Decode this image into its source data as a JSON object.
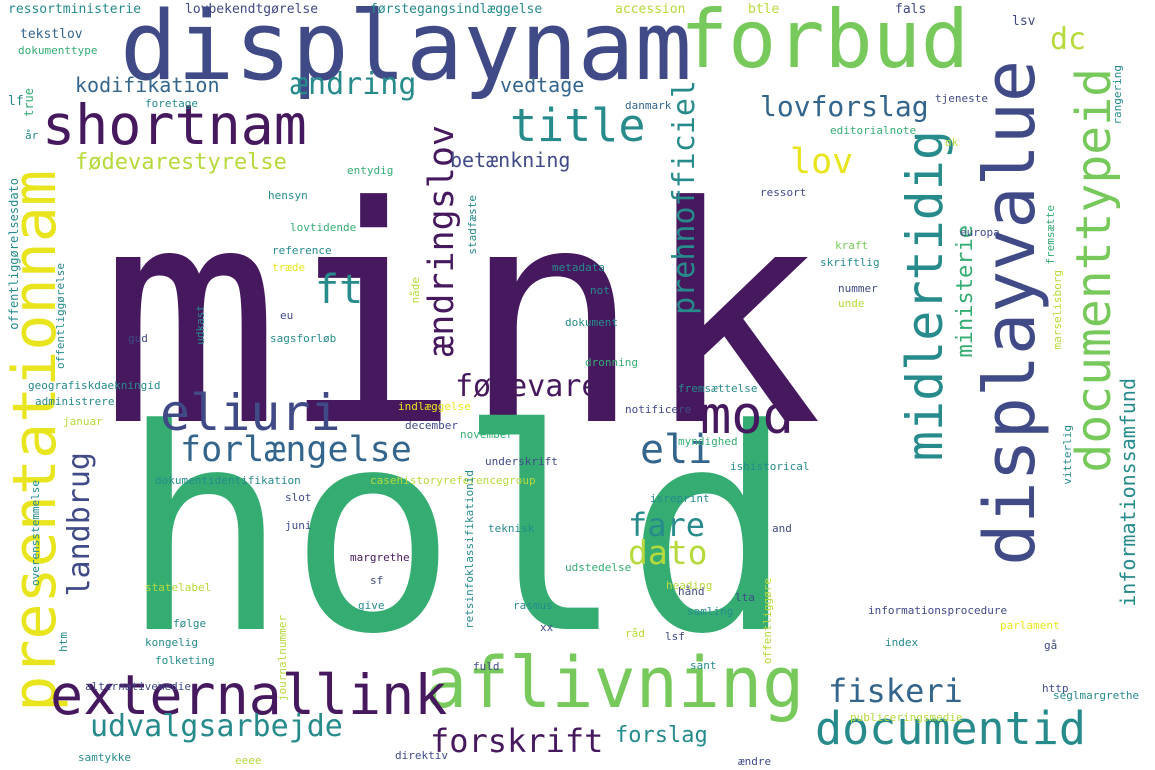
{
  "palette": {
    "dark_purple": "#46195f",
    "indigo": "#404a87",
    "blue": "#33658d",
    "teal": "#278b8c",
    "green": "#35ad72",
    "light_green": "#78c95b",
    "lime": "#b6d93c",
    "yellow": "#e8e51e"
  },
  "words": [
    {
      "text": "mink",
      "color": "dark_purple",
      "rotated": false
    },
    {
      "text": "hold",
      "color": "green",
      "rotated": false
    },
    {
      "text": "displaynam",
      "color": "indigo",
      "rotated": false
    },
    {
      "text": "forbud",
      "color": "light_green",
      "rotated": false
    },
    {
      "text": "shortnam",
      "color": "dark_purple",
      "rotated": false
    },
    {
      "text": "displayvalue",
      "color": "indigo",
      "rotated": true
    },
    {
      "text": "presentationnam",
      "color": "yellow",
      "rotated": true
    },
    {
      "text": "documenttypeid",
      "color": "light_green",
      "rotated": true
    },
    {
      "text": "midlertidig",
      "color": "teal",
      "rotated": true
    },
    {
      "text": "aflivning",
      "color": "light_green",
      "rotated": false
    },
    {
      "text": "externallink",
      "color": "dark_purple",
      "rotated": false
    },
    {
      "text": "eliuri",
      "color": "indigo",
      "rotated": false
    },
    {
      "text": "mod",
      "color": "dark_purple",
      "rotated": false
    },
    {
      "text": "title",
      "color": "teal",
      "rotated": false
    },
    {
      "text": "documentid",
      "color": "teal",
      "rotated": false
    },
    {
      "text": "eli",
      "color": "blue",
      "rotated": false
    },
    {
      "text": "forlængelse",
      "color": "blue",
      "rotated": false
    },
    {
      "text": "lovforslag",
      "color": "blue",
      "rotated": false
    },
    {
      "text": "lov",
      "color": "yellow",
      "rotated": false
    },
    {
      "text": "ændring",
      "color": "teal",
      "rotated": false
    },
    {
      "text": "ændringslov",
      "color": "dark_purple",
      "rotated": true
    },
    {
      "text": "prehnofficiel",
      "color": "teal",
      "rotated": true
    },
    {
      "text": "ft",
      "color": "teal",
      "rotated": false
    },
    {
      "text": "dato",
      "color": "lime",
      "rotated": false
    },
    {
      "text": "fare",
      "color": "teal",
      "rotated": false
    },
    {
      "text": "fiskeri",
      "color": "blue",
      "rotated": false
    },
    {
      "text": "forskrift",
      "color": "dark_purple",
      "rotated": false
    },
    {
      "text": "udvalgsarbejde",
      "color": "teal",
      "rotated": false
    },
    {
      "text": "fødevare",
      "color": "dark_purple",
      "rotated": false
    },
    {
      "text": "landbrug",
      "color": "indigo",
      "rotated": true
    },
    {
      "text": "informationssamfund",
      "color": "teal",
      "rotated": true
    },
    {
      "text": "ministerie",
      "color": "green",
      "rotated": true
    },
    {
      "text": "kodifikation",
      "color": "blue",
      "rotated": false
    },
    {
      "text": "vedtage",
      "color": "blue",
      "rotated": false
    },
    {
      "text": "betænkning",
      "color": "indigo",
      "rotated": false
    },
    {
      "text": "fødevarestyrelse",
      "color": "lime",
      "rotated": false
    },
    {
      "text": "forslag",
      "color": "teal",
      "rotated": false
    },
    {
      "text": "dc",
      "color": "lime",
      "rotated": false
    },
    {
      "text": "ressortministerie",
      "color": "teal",
      "rotated": false
    },
    {
      "text": "lovbekendtgørelse",
      "color": "indigo",
      "rotated": false
    },
    {
      "text": "førstegangsindlæggelse",
      "color": "teal",
      "rotated": false
    },
    {
      "text": "accession",
      "color": "lime",
      "rotated": false
    },
    {
      "text": "btle",
      "color": "lime",
      "rotated": false
    },
    {
      "text": "fals",
      "color": "indigo",
      "rotated": false
    },
    {
      "text": "lsv",
      "color": "indigo",
      "rotated": false
    },
    {
      "text": "tekstlov",
      "color": "blue",
      "rotated": false
    },
    {
      "text": "dokumenttype",
      "color": "green",
      "rotated": false
    },
    {
      "text": "lf",
      "color": "teal",
      "rotated": false
    },
    {
      "text": "true",
      "color": "green",
      "rotated": true
    },
    {
      "text": "foretage",
      "color": "teal",
      "rotated": false
    },
    {
      "text": "år",
      "color": "teal",
      "rotated": false
    },
    {
      "text": "tjeneste",
      "color": "indigo",
      "rotated": false
    },
    {
      "text": "danmark",
      "color": "blue",
      "rotated": false
    },
    {
      "text": "rangering",
      "color": "teal",
      "rotated": true
    },
    {
      "text": "editorialnote",
      "color": "green",
      "rotated": false
    },
    {
      "text": "dk",
      "color": "lime",
      "rotated": false
    },
    {
      "text": "entydig",
      "color": "green",
      "rotated": false
    },
    {
      "text": "offentliggørelsesdato",
      "color": "teal",
      "rotated": true
    },
    {
      "text": "ressort",
      "color": "indigo",
      "rotated": false
    },
    {
      "text": "hensyn",
      "color": "teal",
      "rotated": false
    },
    {
      "text": "lovtidende",
      "color": "green",
      "rotated": false
    },
    {
      "text": "stadfæste",
      "color": "teal",
      "rotated": true
    },
    {
      "text": "europa",
      "color": "indigo",
      "rotated": false
    },
    {
      "text": "fremsætte",
      "color": "green",
      "rotated": true
    },
    {
      "text": "reference",
      "color": "teal",
      "rotated": false
    },
    {
      "text": "træde",
      "color": "yellow",
      "rotated": false
    },
    {
      "text": "kraft",
      "color": "light_green",
      "rotated": false
    },
    {
      "text": "skriftlig",
      "color": "teal",
      "rotated": false
    },
    {
      "text": "metadata",
      "color": "teal",
      "rotated": false
    },
    {
      "text": "not",
      "color": "teal",
      "rotated": false
    },
    {
      "text": "nummer",
      "color": "indigo",
      "rotated": false
    },
    {
      "text": "unde",
      "color": "lime",
      "rotated": false
    },
    {
      "text": "marselisborg",
      "color": "lime",
      "rotated": true
    },
    {
      "text": "nåde",
      "color": "lime",
      "rotated": true
    },
    {
      "text": "eu",
      "color": "indigo",
      "rotated": false
    },
    {
      "text": "udkast",
      "color": "teal",
      "rotated": true
    },
    {
      "text": "dokument",
      "color": "teal",
      "rotated": false
    },
    {
      "text": "gud",
      "color": "indigo",
      "rotated": false
    },
    {
      "text": "sagsforløb",
      "color": "teal",
      "rotated": false
    },
    {
      "text": "dronning",
      "color": "green",
      "rotated": false
    },
    {
      "text": "offentliggørelse",
      "color": "teal",
      "rotated": true
    },
    {
      "text": "geografiskdaekningid",
      "color": "teal",
      "rotated": false
    },
    {
      "text": "administrere",
      "color": "teal",
      "rotated": false
    },
    {
      "text": "fremsættelse",
      "color": "teal",
      "rotated": false
    },
    {
      "text": "indlæggelse",
      "color": "yellow",
      "rotated": false
    },
    {
      "text": "notificere",
      "color": "indigo",
      "rotated": false
    },
    {
      "text": "januar",
      "color": "lime",
      "rotated": false
    },
    {
      "text": "december",
      "color": "indigo",
      "rotated": false
    },
    {
      "text": "november",
      "color": "green",
      "rotated": false
    },
    {
      "text": "myndighed",
      "color": "green",
      "rotated": false
    },
    {
      "text": "underskrift",
      "color": "indigo",
      "rotated": false
    },
    {
      "text": "ishistorical",
      "color": "teal",
      "rotated": false
    },
    {
      "text": "vitterlig",
      "color": "teal",
      "rotated": true
    },
    {
      "text": "dokumentidentifikation",
      "color": "teal",
      "rotated": false
    },
    {
      "text": "casehistoryreferencegroup",
      "color": "lime",
      "rotated": false
    },
    {
      "text": "slot",
      "color": "indigo",
      "rotated": false
    },
    {
      "text": "isreprint",
      "color": "teal",
      "rotated": false
    },
    {
      "text": "overensstemmelse",
      "color": "teal",
      "rotated": true
    },
    {
      "text": "juni",
      "color": "indigo",
      "rotated": false
    },
    {
      "text": "teknisk",
      "color": "teal",
      "rotated": false
    },
    {
      "text": "and",
      "color": "indigo",
      "rotated": false
    },
    {
      "text": "retsinfoklassifikationid",
      "color": "teal",
      "rotated": true
    },
    {
      "text": "margrethe",
      "color": "dark_purple",
      "rotated": false
    },
    {
      "text": "udstedelse",
      "color": "green",
      "rotated": false
    },
    {
      "text": "heading",
      "color": "lime",
      "rotated": false
    },
    {
      "text": "hånd",
      "color": "indigo",
      "rotated": false
    },
    {
      "text": "sf",
      "color": "indigo",
      "rotated": false
    },
    {
      "text": "lta",
      "color": "indigo",
      "rotated": false
    },
    {
      "text": "statelabel",
      "color": "lime",
      "rotated": false
    },
    {
      "text": "give",
      "color": "teal",
      "rotated": false
    },
    {
      "text": "rasmus",
      "color": "teal",
      "rotated": false
    },
    {
      "text": "samling",
      "color": "teal",
      "rotated": false
    },
    {
      "text": "informationsprocedure",
      "color": "indigo",
      "rotated": false
    },
    {
      "text": "følge",
      "color": "teal",
      "rotated": false
    },
    {
      "text": "xx",
      "color": "indigo",
      "rotated": false
    },
    {
      "text": "råd",
      "color": "lime",
      "rotated": false
    },
    {
      "text": "lsf",
      "color": "indigo",
      "rotated": false
    },
    {
      "text": "parlament",
      "color": "yellow",
      "rotated": false
    },
    {
      "text": "offentliggøre",
      "color": "lime",
      "rotated": true
    },
    {
      "text": "kongelig",
      "color": "teal",
      "rotated": false
    },
    {
      "text": "index",
      "color": "teal",
      "rotated": false
    },
    {
      "text": "gå",
      "color": "indigo",
      "rotated": false
    },
    {
      "text": "folketing",
      "color": "teal",
      "rotated": false
    },
    {
      "text": "journalnummer",
      "color": "lime",
      "rotated": true
    },
    {
      "text": "htm",
      "color": "teal",
      "rotated": true
    },
    {
      "text": "fuld",
      "color": "indigo",
      "rotated": false
    },
    {
      "text": "sant",
      "color": "teal",
      "rotated": false
    },
    {
      "text": "alternativemedie",
      "color": "indigo",
      "rotated": false
    },
    {
      "text": "http",
      "color": "indigo",
      "rotated": false
    },
    {
      "text": "seglmargrethe",
      "color": "teal",
      "rotated": false
    },
    {
      "text": "publiceringsmedie",
      "color": "lime",
      "rotated": false
    },
    {
      "text": "direktiv",
      "color": "indigo",
      "rotated": false
    },
    {
      "text": "ændre",
      "color": "indigo",
      "rotated": false
    },
    {
      "text": "samtykke",
      "color": "teal",
      "rotated": false
    },
    {
      "text": "eeee",
      "color": "lime",
      "rotated": false
    }
  ]
}
